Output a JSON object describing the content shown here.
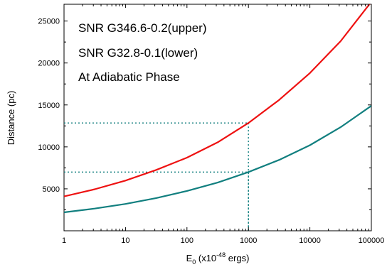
{
  "chart_data": {
    "type": "line",
    "xscale": "log",
    "xlim": [
      1,
      100000
    ],
    "ylim": [
      0,
      27000
    ],
    "xlabel": {
      "main": "E",
      "sub": "0",
      "pre": " (x10",
      "sup": "-48",
      "post": " ergs)"
    },
    "ylabel": "Distance (pc)",
    "x_tick_labels": [
      "1",
      "10",
      "100",
      "1000",
      "10000",
      "100000"
    ],
    "x_ticks": [
      1,
      10,
      100,
      1000,
      10000,
      100000
    ],
    "y_tick_labels": [
      "5000",
      "10000",
      "15000",
      "20000",
      "25000"
    ],
    "y_ticks": [
      5000,
      10000,
      15000,
      20000,
      25000
    ],
    "annotations": [
      "SNR G346.6-0.2(upper)",
      "SNR G32.8-0.1(lower)",
      "At Adiabatic Phase"
    ],
    "series": [
      {
        "color": "#ee1111",
        "x": [
          1,
          3.16,
          10,
          31.6,
          100,
          316,
          1000,
          3162,
          10000,
          31623,
          100000
        ],
        "y": [
          4100,
          4950,
          5980,
          7250,
          8720,
          10550,
          12850,
          15600,
          18800,
          22600,
          27300
        ]
      },
      {
        "color": "#117f7f",
        "x": [
          1,
          3.16,
          10,
          31.6,
          100,
          316,
          1000,
          3162,
          10000,
          31623,
          100000
        ],
        "y": [
          2200,
          2650,
          3200,
          3900,
          4750,
          5750,
          7000,
          8450,
          10200,
          12350,
          14900
        ]
      }
    ],
    "reference_lines": [
      {
        "x": 1000,
        "y": 12850,
        "color": "#117f7f"
      },
      {
        "x": 1000,
        "y": 7000,
        "color": "#117f7f"
      }
    ]
  }
}
